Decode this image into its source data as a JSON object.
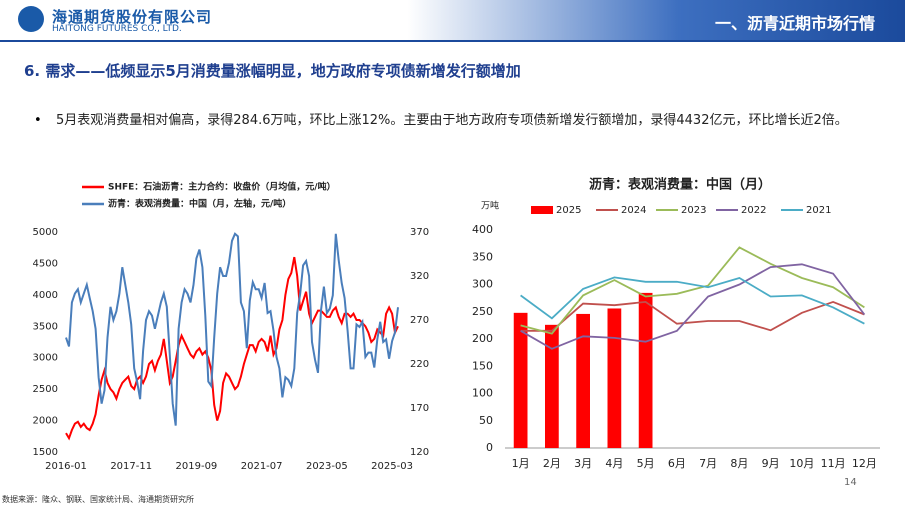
{
  "header": {
    "company": "海通期货股份有限公司",
    "company_en": "HAITONG FUTURES CO., LTD.",
    "section": "一、沥青近期市场行情"
  },
  "heading": "6. 需求——低频显示5月消费量涨幅明显，地方政府专项债新增发行额增加",
  "bullet": "5月表观消费量相对偏高，录得284.6万吨，环比上涨12%。主要由于地方政府专项债新增发行额增加，录得4432亿元，环比增长近2倍。",
  "source": "数据来源：隆众、钢联、国家统计局、海通期货研究所",
  "page_number": "14",
  "chart_data": [
    {
      "type": "line",
      "x": [
        "2016-01",
        "2016-02",
        "2016-03",
        "2016-04",
        "2016-05",
        "2016-06",
        "2016-07",
        "2016-08",
        "2016-09",
        "2016-10",
        "2016-11",
        "2016-12",
        "2017-01",
        "2017-02",
        "2017-03",
        "2017-04",
        "2017-05",
        "2017-06",
        "2017-07",
        "2017-08",
        "2017-09",
        "2017-10",
        "2017-11",
        "2017-12",
        "2018-01",
        "2018-02",
        "2018-03",
        "2018-04",
        "2018-05",
        "2018-06",
        "2018-07",
        "2018-08",
        "2018-09",
        "2018-10",
        "2018-11",
        "2018-12",
        "2019-01",
        "2019-02",
        "2019-03",
        "2019-04",
        "2019-05",
        "2019-06",
        "2019-07",
        "2019-08",
        "2019-09",
        "2019-10",
        "2019-11",
        "2019-12",
        "2020-01",
        "2020-02",
        "2020-03",
        "2020-04",
        "2020-05",
        "2020-06",
        "2020-07",
        "2020-08",
        "2020-09",
        "2020-10",
        "2020-11",
        "2020-12",
        "2021-01",
        "2021-02",
        "2021-03",
        "2021-04",
        "2021-05",
        "2021-06",
        "2021-07",
        "2021-08",
        "2021-09",
        "2021-10",
        "2021-11",
        "2021-12",
        "2022-01",
        "2022-02",
        "2022-03",
        "2022-04",
        "2022-05",
        "2022-06",
        "2022-07",
        "2022-08",
        "2022-09",
        "2022-10",
        "2022-11",
        "2022-12",
        "2023-01",
        "2023-02",
        "2023-03",
        "2023-04",
        "2023-05",
        "2023-06",
        "2023-07",
        "2023-08",
        "2023-09",
        "2023-10",
        "2023-11",
        "2023-12",
        "2024-01",
        "2024-02",
        "2024-03",
        "2024-04",
        "2024-05",
        "2024-06",
        "2024-07",
        "2024-08",
        "2024-09",
        "2024-10",
        "2024-11",
        "2024-12",
        "2025-01",
        "2025-02",
        "2025-03",
        "2025-04",
        "2025-05"
      ],
      "xticks": [
        "2016-01",
        "2017-11",
        "2019-09",
        "2021-07",
        "2023-05",
        "2025-03"
      ],
      "ylim": [
        1500,
        5000
      ],
      "yticks": [
        1500,
        2000,
        2500,
        3000,
        3500,
        4000,
        4500,
        5000
      ],
      "y2lim": [
        120,
        370
      ],
      "y2ticks": [
        120,
        170,
        220,
        270,
        320,
        370
      ],
      "series": [
        {
          "name": "SHFE：石油沥青：主力合约：收盘价（月均值，元/吨）",
          "color": "#ff0000",
          "values": [
            1800,
            1720,
            1850,
            1950,
            1980,
            1900,
            1950,
            1880,
            1850,
            1950,
            2100,
            2400,
            2650,
            2800,
            2600,
            2500,
            2450,
            2350,
            2500,
            2600,
            2650,
            2700,
            2550,
            2500,
            2650,
            2700,
            2600,
            2700,
            2900,
            2950,
            2800,
            2950,
            3050,
            3300,
            2950,
            2600,
            2700,
            2950,
            3200,
            3350,
            3250,
            3150,
            3050,
            3000,
            3100,
            3150,
            3050,
            3100,
            3000,
            2800,
            2250,
            2000,
            2150,
            2600,
            2750,
            2700,
            2600,
            2500,
            2550,
            2700,
            2900,
            3050,
            3200,
            3200,
            3100,
            3250,
            3300,
            3250,
            3100,
            3350,
            3050,
            3150,
            3450,
            3600,
            4000,
            4250,
            4350,
            4600,
            4300,
            3750,
            3900,
            4050,
            3700,
            3550,
            3650,
            3750,
            3750,
            3700,
            3650,
            3650,
            3750,
            3800,
            3650,
            3550,
            3700,
            3700,
            3650,
            3700,
            3600,
            3600,
            3550,
            3500,
            3400,
            3250,
            3300,
            3450,
            3400,
            3350,
            3700,
            3800,
            3700,
            3400,
            3500
          ]
        },
        {
          "name": "沥青：表观消费量：中国（月，左轴，元/吨）",
          "color": "#4a7ebb",
          "axis": "y2",
          "values": [
            250,
            240,
            290,
            300,
            305,
            290,
            300,
            310,
            295,
            280,
            260,
            205,
            175,
            190,
            250,
            285,
            270,
            280,
            300,
            330,
            310,
            290,
            265,
            215,
            200,
            180,
            235,
            270,
            280,
            275,
            260,
            275,
            290,
            300,
            285,
            230,
            175,
            150,
            260,
            290,
            305,
            300,
            290,
            310,
            340,
            350,
            330,
            275,
            200,
            195,
            250,
            300,
            330,
            320,
            320,
            335,
            360,
            368,
            365,
            290,
            280,
            238,
            292,
            313,
            305,
            305,
            295,
            312,
            278,
            280,
            258,
            228,
            215,
            182,
            205,
            202,
            195,
            215,
            278,
            300,
            332,
            337,
            320,
            245,
            225,
            210,
            280,
            308,
            278,
            283,
            298,
            368,
            338,
            312,
            295,
            258,
            215,
            215,
            265,
            262,
            268,
            228,
            233,
            233,
            216,
            248,
            268,
            245,
            248,
            226,
            246,
            256,
            284.6
          ]
        }
      ]
    },
    {
      "type": "bar",
      "title": "沥青：表观消费量：中国（月）",
      "y_label": "万吨",
      "categories": [
        "1月",
        "2月",
        "3月",
        "4月",
        "5月",
        "6月",
        "7月",
        "8月",
        "9月",
        "10月",
        "11月",
        "12月"
      ],
      "ylim": [
        0,
        400
      ],
      "yticks": [
        0,
        50,
        100,
        150,
        200,
        250,
        300,
        350,
        400
      ],
      "series": [
        {
          "name": "2025",
          "type": "bar",
          "color": "#ff0000",
          "values": [
            248,
            226,
            246,
            256,
            284.6,
            null,
            null,
            null,
            null,
            null,
            null,
            null
          ]
        },
        {
          "name": "2024",
          "type": "line",
          "color": "#c0504d",
          "values": [
            215,
            215,
            265,
            262,
            268,
            228,
            233,
            233,
            216,
            248,
            268,
            245
          ]
        },
        {
          "name": "2023",
          "type": "line",
          "color": "#9bbb59",
          "values": [
            225,
            210,
            280,
            308,
            278,
            283,
            298,
            368,
            338,
            312,
            295,
            258
          ]
        },
        {
          "name": "2022",
          "type": "line",
          "color": "#8064a2",
          "values": [
            215,
            182,
            205,
            202,
            195,
            215,
            278,
            300,
            332,
            337,
            320,
            245
          ]
        },
        {
          "name": "2021",
          "type": "line",
          "color": "#4bacc6",
          "values": [
            280,
            238,
            292,
            313,
            305,
            305,
            295,
            312,
            278,
            280,
            258,
            228
          ]
        }
      ]
    }
  ]
}
